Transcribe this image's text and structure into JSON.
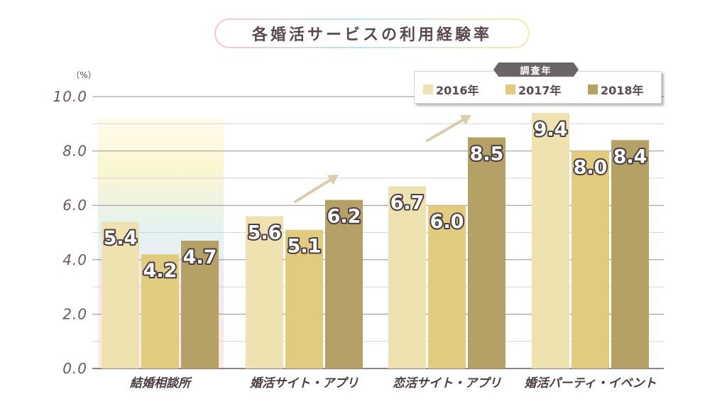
{
  "title": "各婚活サービスの利用経験率",
  "legend_title": "調査年",
  "colors": {
    "s2016": "#ede2b0",
    "s2017": "#e0cb7f",
    "s2018": "#b5a165",
    "axis_text": "#6b5a62",
    "grid": "#9a8e92"
  },
  "chart_data": {
    "type": "bar",
    "unit_label": "（%）",
    "ylim": [
      0,
      10
    ],
    "yticks": [
      "0.0",
      "2.0",
      "4.0",
      "6.0",
      "8.0",
      "10.0"
    ],
    "categories": [
      "結婚相談所",
      "婚活サイト・アプリ",
      "恋活サイト・アプリ",
      "婚活パーティ・イベント"
    ],
    "series": [
      {
        "name": "2016年",
        "values": [
          5.4,
          5.6,
          6.7,
          9.4
        ]
      },
      {
        "name": "2017年",
        "values": [
          4.2,
          5.1,
          6.0,
          8.0
        ]
      },
      {
        "name": "2018年",
        "values": [
          4.7,
          6.2,
          8.5,
          8.4
        ]
      }
    ],
    "data_labels": [
      [
        "5.4",
        "4.2",
        "4.7"
      ],
      [
        "5.6",
        "5.1",
        "6.2"
      ],
      [
        "6.7",
        "6.0",
        "8.5"
      ],
      [
        "9.4",
        "8.0",
        "8.4"
      ]
    ],
    "grid": true,
    "legend_position": "top-right"
  }
}
